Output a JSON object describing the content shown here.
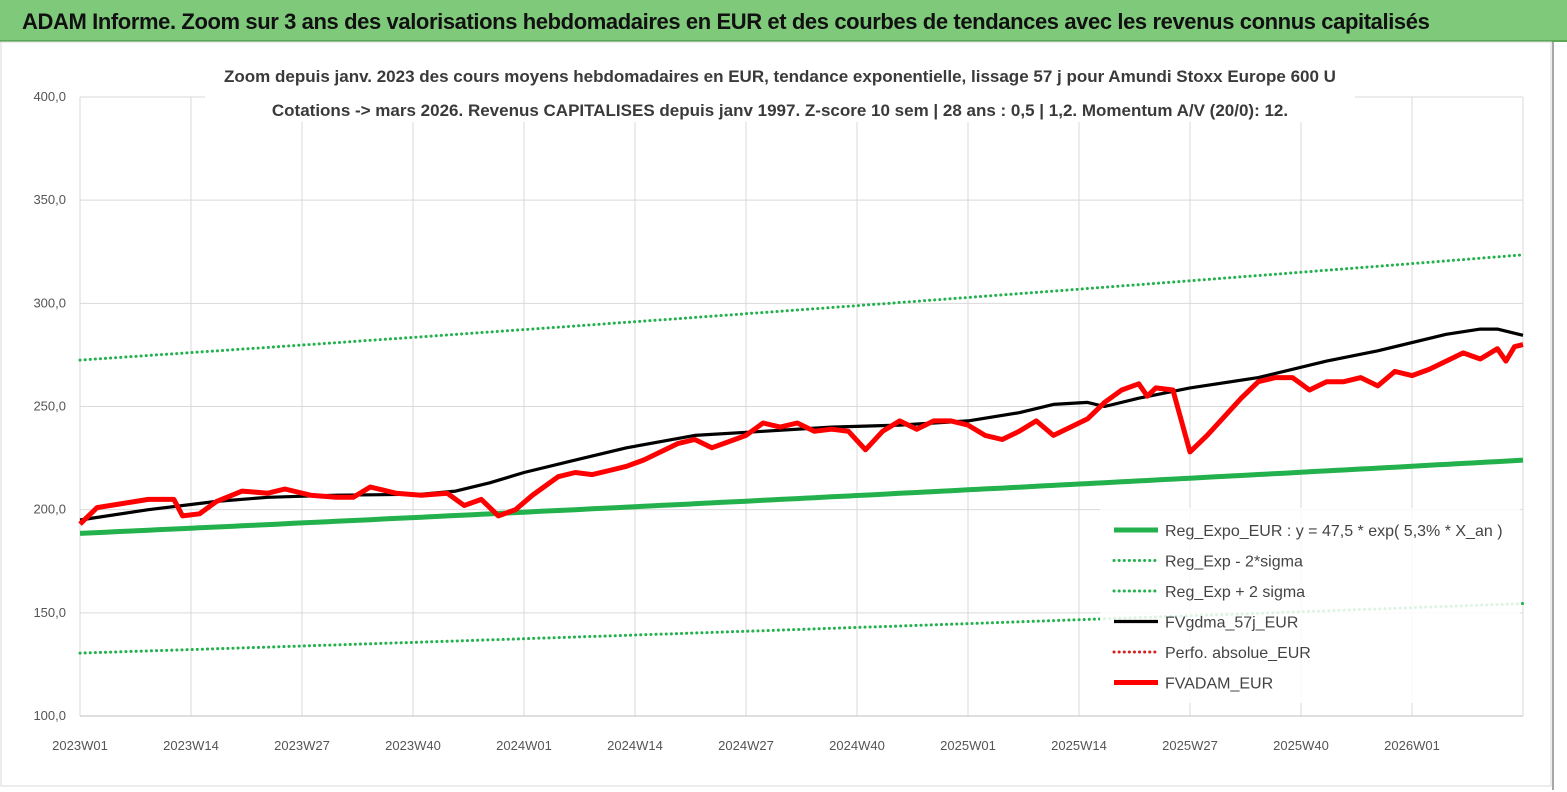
{
  "banner": {
    "title": "ADAM Informe. Zoom sur 3 ans des valorisations hebdomadaires en EUR et des courbes de tendances avec les revenus connus capitalisés"
  },
  "colors": {
    "banner_bg": "#7fc97a",
    "reg_expo": "#22b14c",
    "fvgdma": "#000000",
    "perfo": "#d62020",
    "fvadam": "#ff0000"
  },
  "chart_data": {
    "type": "line",
    "title_line1": "Zoom depuis janv. 2023 des cours moyens hebdomadaires en EUR, tendance exponentielle, lissage 57 j pour Amundi Stoxx Europe 600 U",
    "title_line2": "Cotations -> mars 2026. Revenus CAPITALISES depuis janv 1997. Z-score 10 sem | 28 ans : 0,5 | 1,2. Momentum A/V (20/0): 12.",
    "x_tick_labels": [
      "2023W01",
      "2023W14",
      "2023W27",
      "2023W40",
      "2024W01",
      "2024W14",
      "2024W27",
      "2024W40",
      "2025W01",
      "2025W14",
      "2025W27",
      "2025W40",
      "2026W01"
    ],
    "x_tick_index": [
      0,
      13,
      26,
      39,
      52,
      65,
      78,
      91,
      104,
      117,
      130,
      143,
      156
    ],
    "x_max_index": 169,
    "ylim": [
      100,
      400
    ],
    "y_ticks": [
      "100,0",
      "150,0",
      "200,0",
      "250,0",
      "300,0",
      "350,0",
      "400,0"
    ],
    "legend_position": "bottom-right",
    "series": [
      {
        "name": "Reg_Expo_EUR : y = 47,5 * exp( 5,3% *  X_an )",
        "style": "solid-thick",
        "color": "#22b14c",
        "start": 188.5,
        "end": 224
      },
      {
        "name": "Reg_Exp - 2*sigma",
        "style": "dotted",
        "color": "#22b14c",
        "start": 130.5,
        "end": 154.5
      },
      {
        "name": "Reg_Exp + 2 sigma",
        "style": "dotted",
        "color": "#22b14c",
        "start": 272.5,
        "end": 323.5
      },
      {
        "name": "FVgdma_57j_EUR",
        "style": "solid",
        "color": "#000000",
        "points": [
          [
            0,
            195
          ],
          [
            8,
            200
          ],
          [
            16,
            204
          ],
          [
            22,
            206
          ],
          [
            30,
            207
          ],
          [
            40,
            207.5
          ],
          [
            44,
            209
          ],
          [
            48,
            213
          ],
          [
            52,
            218
          ],
          [
            58,
            224
          ],
          [
            64,
            230
          ],
          [
            72,
            236
          ],
          [
            80,
            238
          ],
          [
            88,
            240
          ],
          [
            96,
            241
          ],
          [
            104,
            243
          ],
          [
            110,
            247
          ],
          [
            114,
            251
          ],
          [
            118,
            252
          ],
          [
            120,
            250
          ],
          [
            124,
            254
          ],
          [
            130,
            259
          ],
          [
            138,
            264
          ],
          [
            146,
            272
          ],
          [
            152,
            277
          ],
          [
            160,
            285
          ],
          [
            164,
            287.5
          ],
          [
            166,
            287.5
          ],
          [
            169,
            284.5
          ]
        ]
      },
      {
        "name": "Perfo. absolue_EUR",
        "style": "dotted",
        "color": "#d62020",
        "points": []
      },
      {
        "name": "FVADAM_EUR",
        "style": "solid-thick",
        "color": "#ff0000",
        "points": [
          [
            0,
            193
          ],
          [
            2,
            201
          ],
          [
            5,
            203
          ],
          [
            8,
            205
          ],
          [
            11,
            205
          ],
          [
            12,
            197
          ],
          [
            14,
            198
          ],
          [
            16,
            204
          ],
          [
            19,
            209
          ],
          [
            22,
            208
          ],
          [
            24,
            210
          ],
          [
            27,
            207
          ],
          [
            30,
            206
          ],
          [
            32,
            206
          ],
          [
            34,
            211
          ],
          [
            37,
            208
          ],
          [
            40,
            207
          ],
          [
            43,
            208
          ],
          [
            45,
            202
          ],
          [
            47,
            205
          ],
          [
            49,
            197
          ],
          [
            51,
            200
          ],
          [
            53,
            207
          ],
          [
            56,
            216
          ],
          [
            58,
            218
          ],
          [
            60,
            217
          ],
          [
            62,
            219
          ],
          [
            64,
            221
          ],
          [
            66,
            224
          ],
          [
            68,
            228
          ],
          [
            70,
            232
          ],
          [
            72,
            234
          ],
          [
            74,
            230
          ],
          [
            76,
            233
          ],
          [
            78,
            236
          ],
          [
            80,
            242
          ],
          [
            82,
            240
          ],
          [
            84,
            242
          ],
          [
            86,
            238
          ],
          [
            88,
            239
          ],
          [
            90,
            238
          ],
          [
            92,
            229
          ],
          [
            94,
            238
          ],
          [
            96,
            243
          ],
          [
            98,
            239
          ],
          [
            100,
            243
          ],
          [
            102,
            243
          ],
          [
            104,
            241
          ],
          [
            106,
            236
          ],
          [
            108,
            234
          ],
          [
            110,
            238
          ],
          [
            112,
            243
          ],
          [
            114,
            236
          ],
          [
            116,
            240
          ],
          [
            118,
            244
          ],
          [
            120,
            252
          ],
          [
            122,
            258
          ],
          [
            124,
            261
          ],
          [
            125,
            255
          ],
          [
            126,
            259
          ],
          [
            128,
            258
          ],
          [
            130,
            228
          ],
          [
            132,
            236
          ],
          [
            134,
            245
          ],
          [
            136,
            254
          ],
          [
            138,
            262
          ],
          [
            140,
            264
          ],
          [
            142,
            264
          ],
          [
            144,
            258
          ],
          [
            146,
            262
          ],
          [
            148,
            262
          ],
          [
            150,
            264
          ],
          [
            152,
            260
          ],
          [
            154,
            267
          ],
          [
            156,
            265
          ],
          [
            158,
            268
          ],
          [
            160,
            272
          ],
          [
            162,
            276
          ],
          [
            164,
            273
          ],
          [
            166,
            278
          ],
          [
            167,
            272
          ],
          [
            168,
            279
          ],
          [
            169,
            280
          ]
        ]
      }
    ]
  }
}
